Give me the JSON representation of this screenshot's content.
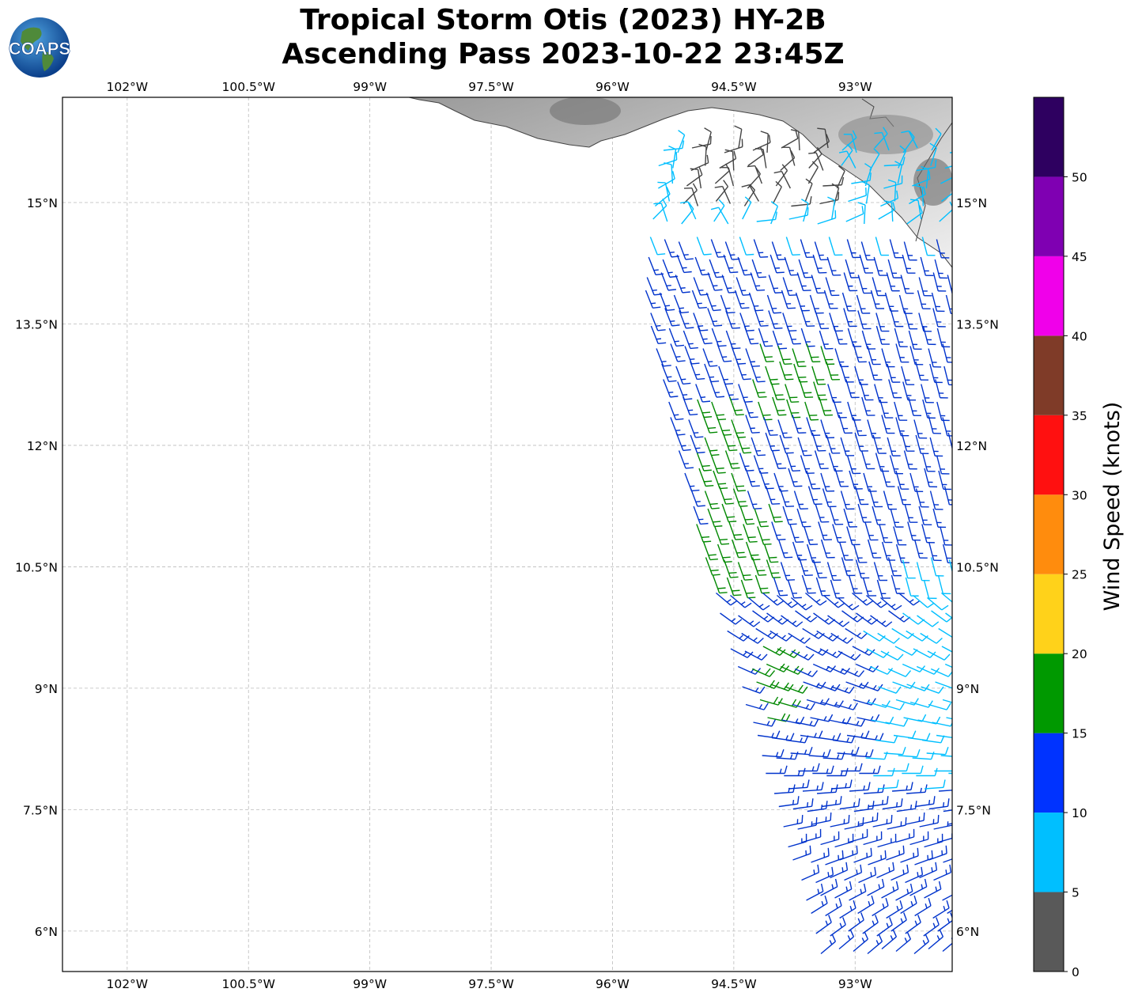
{
  "title_line1": "Tropical Storm Otis (2023) HY-2B",
  "title_line2": "Ascending Pass 2023-10-22 23:45Z",
  "logo_text": "COAPS",
  "lon_ticks": [
    "102°W",
    "100.5°W",
    "99°W",
    "97.5°W",
    "96°W",
    "94.5°W",
    "93°W"
  ],
  "lat_ticks": [
    "15°N",
    "13.5°N",
    "12°N",
    "10.5°N",
    "9°N",
    "7.5°N",
    "6°N"
  ],
  "chart_data": {
    "type": "map",
    "map_extent": {
      "lon": [
        -102.8,
        -91.8
      ],
      "lat": [
        5.5,
        16.3
      ]
    },
    "grid": true,
    "colorbar": {
      "title": "Wind Speed (knots)",
      "ticks": [
        "0",
        "5",
        "10",
        "15",
        "20",
        "25",
        "30",
        "35",
        "40",
        "45",
        "50"
      ],
      "bins": [
        {
          "from": 0,
          "to": 5,
          "color": "#595959"
        },
        {
          "from": 5,
          "to": 10,
          "color": "#00bfff"
        },
        {
          "from": 10,
          "to": 15,
          "color": "#0033ff"
        },
        {
          "from": 15,
          "to": 20,
          "color": "#009900"
        },
        {
          "from": 20,
          "to": 25,
          "color": "#ffd21a"
        },
        {
          "from": 25,
          "to": 30,
          "color": "#ff8c0d"
        },
        {
          "from": 30,
          "to": 35,
          "color": "#ff1010"
        },
        {
          "from": 35,
          "to": 40,
          "color": "#7f3b28"
        },
        {
          "from": 40,
          "to": 45,
          "color": "#f000ea"
        },
        {
          "from": 45,
          "to": 50,
          "color": "#7f00b2"
        },
        {
          "from": 50,
          "to": 55,
          "color": "#2e0060"
        }
      ]
    },
    "barb_colors": {
      "calm": "#444444",
      "light": "#00bfff",
      "moderate": "#0033cc",
      "fresh": "#008800"
    }
  }
}
